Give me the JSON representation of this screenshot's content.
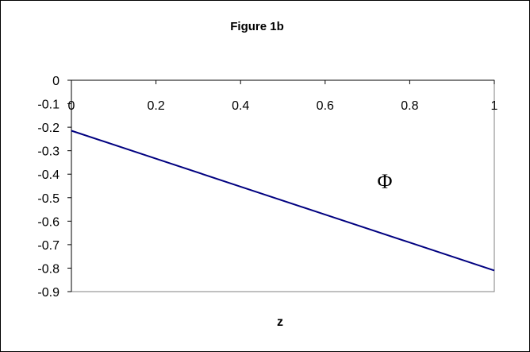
{
  "chart_data": {
    "type": "line",
    "title": "Figure 1b",
    "xlabel": "z",
    "ylabel": "",
    "xlim": [
      0,
      1
    ],
    "ylim": [
      -0.9,
      0
    ],
    "x_ticks": [
      "0",
      "0.2",
      "0.4",
      "0.6",
      "0.8",
      "1"
    ],
    "x_tick_values": [
      0,
      0.2,
      0.4,
      0.6,
      0.8,
      1
    ],
    "y_ticks": [
      "0",
      "-0.1",
      "-0.2",
      "-0.3",
      "-0.4",
      "-0.5",
      "-0.6",
      "-0.7",
      "-0.8",
      "-0.9"
    ],
    "y_tick_values": [
      0,
      -0.1,
      -0.2,
      -0.3,
      -0.4,
      -0.5,
      -0.6,
      -0.7,
      -0.8,
      -0.9
    ],
    "grid": false,
    "legend": "none",
    "annotations": [
      "Φ"
    ],
    "series": [
      {
        "color": "#000080",
        "x": [
          0,
          0.2,
          0.4,
          0.6,
          0.8,
          1
        ],
        "y": [
          -0.215,
          -0.334,
          -0.453,
          -0.572,
          -0.691,
          -0.81
        ]
      }
    ]
  }
}
